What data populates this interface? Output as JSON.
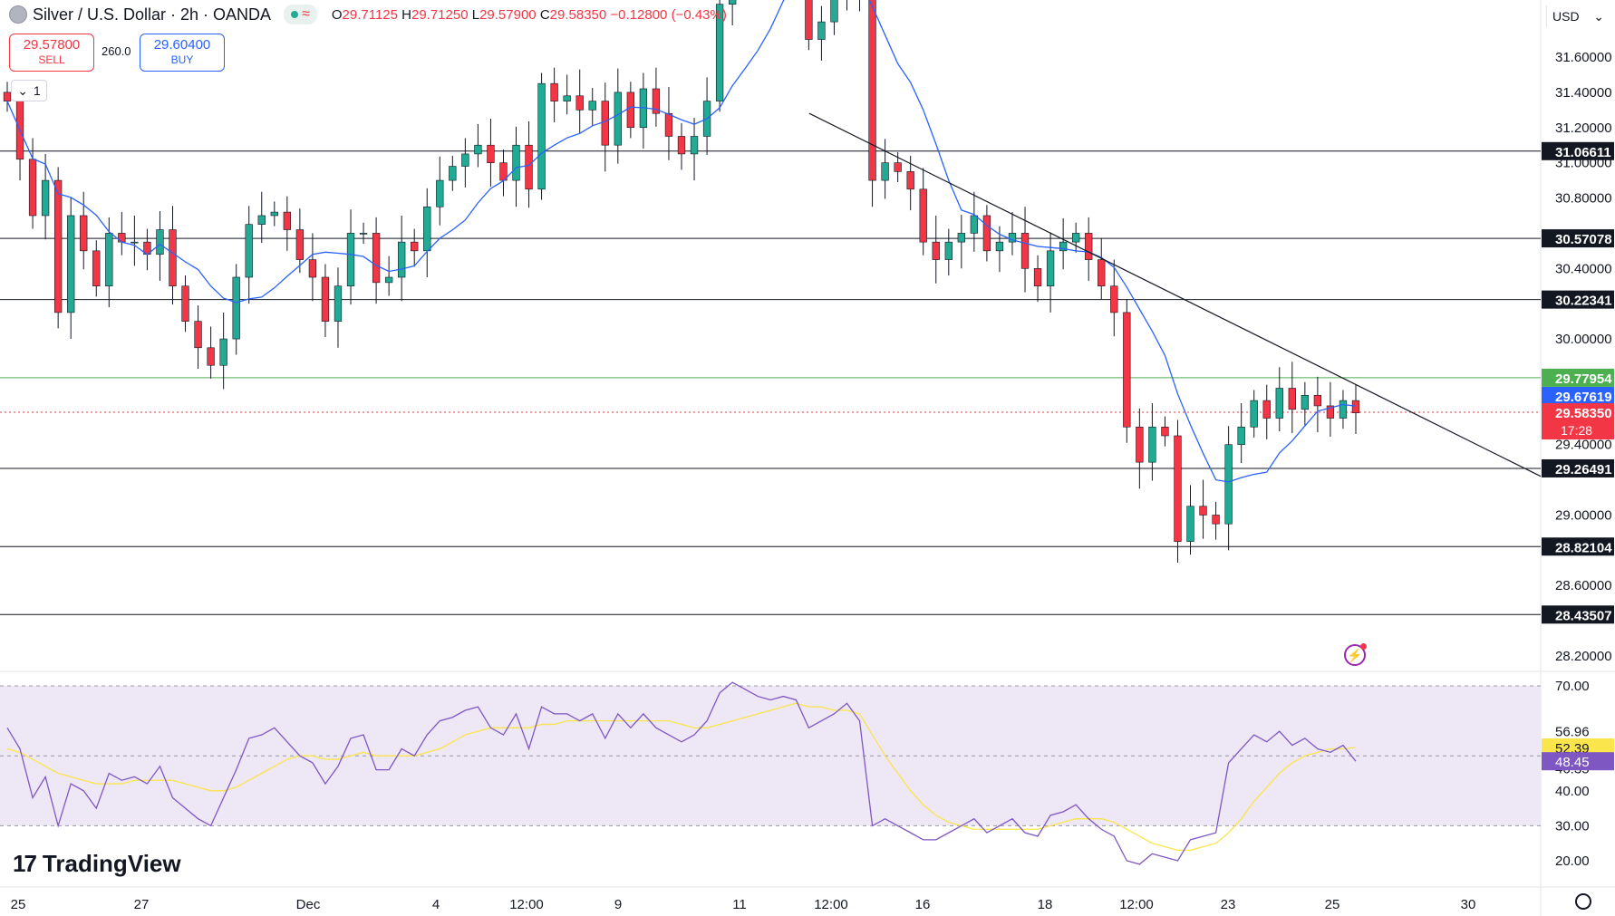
{
  "header": {
    "title": "Silver / U.S. Dollar · 2h · OANDA",
    "o_label": "O",
    "o_value": "29.71125",
    "h_label": "H",
    "h_value": "29.71250",
    "l_label": "L",
    "l_value": "29.57900",
    "c_label": "C",
    "c_value": "29.58350",
    "change": "−0.12800 (−0.43%)"
  },
  "trade": {
    "sell_price": "29.57800",
    "sell_label": "SELL",
    "spread": "260.0",
    "buy_price": "29.60400",
    "buy_label": "BUY"
  },
  "indicator_toggle": "1",
  "currency": "USD",
  "branding": "TradingView",
  "icons": [
    "coin-icon",
    "market-open-dot-icon",
    "wave-icon",
    "chevron-down-icon",
    "lightning-icon",
    "settings-icon"
  ],
  "colors": {
    "up": "#22ab94",
    "down": "#f23645",
    "ma": "#2962ff",
    "rsi": "#7e57c2",
    "rsi_ma": "#fbe54c",
    "rsi_band": "#ede7f6",
    "level": "#131722",
    "green_level": "#4caf50"
  },
  "chart_data": [
    {
      "type": "candlestick",
      "title": "Silver / U.S. Dollar · 2h · OANDA",
      "ylim": [
        28.0,
        32.0
      ],
      "y_ticks": [
        "31.60000",
        "31.40000",
        "31.20000",
        "31.00000",
        "30.80000",
        "30.40000",
        "30.00000",
        "29.40000",
        "29.00000",
        "28.60000",
        "28.20000"
      ],
      "x_ticks": [
        "25",
        "27",
        "Dec",
        "4",
        "12:00",
        "9",
        "11",
        "12:00",
        "16",
        "18",
        "12:00",
        "23",
        "25",
        "30"
      ],
      "horizontal_levels": [
        "31.06611",
        "30.57078",
        "30.22341",
        "29.26491",
        "28.82104",
        "28.43507"
      ],
      "green_level": "29.77954",
      "ma_label": "29.67619",
      "last_price": "29.58350",
      "countdown": "17:28",
      "trendline": {
        "from": 31.28,
        "to": 29.22
      },
      "closes": [
        31.35,
        31.02,
        30.7,
        30.9,
        30.15,
        30.7,
        30.5,
        30.3,
        30.6,
        30.55,
        30.55,
        30.48,
        30.62,
        30.3,
        30.1,
        29.95,
        29.85,
        30.0,
        30.35,
        30.65,
        30.7,
        30.72,
        30.62,
        30.45,
        30.35,
        30.1,
        30.3,
        30.6,
        30.6,
        30.32,
        30.35,
        30.55,
        30.5,
        30.75,
        30.9,
        30.98,
        31.05,
        31.1,
        31.0,
        30.9,
        31.1,
        30.85,
        31.45,
        31.35,
        31.38,
        31.3,
        31.35,
        31.1,
        31.4,
        31.2,
        31.42,
        31.28,
        31.15,
        31.05,
        31.15,
        31.35,
        31.9,
        32.2,
        32.2,
        32.1,
        32.15,
        32.3,
        32.25,
        31.7,
        31.8,
        32.0,
        32.2,
        31.95,
        30.9,
        31.0,
        30.95,
        30.85,
        30.55,
        30.45,
        30.55,
        30.6,
        30.7,
        30.5,
        30.55,
        30.6,
        30.4,
        30.3,
        30.5,
        30.55,
        30.6,
        30.45,
        30.3,
        30.15,
        29.5,
        29.3,
        29.5,
        29.45,
        28.85,
        29.05,
        29.0,
        28.95,
        29.4,
        29.5,
        29.65,
        29.55,
        29.72,
        29.6,
        29.68,
        29.62,
        29.55,
        29.65,
        29.58
      ]
    },
    {
      "type": "line",
      "title": "RSI",
      "ylim": [
        15,
        75
      ],
      "y_ticks": [
        "70.00",
        "56.96",
        "46.35",
        "40.00",
        "30.00",
        "20.00"
      ],
      "bands": [
        30,
        50,
        70
      ],
      "rsi_value": "48.45",
      "rsi_ma_value": "52.39",
      "rsi": [
        58,
        52,
        38,
        44,
        30,
        42,
        40,
        35,
        45,
        43,
        44,
        42,
        47,
        38,
        35,
        32,
        30,
        38,
        46,
        55,
        56,
        58,
        54,
        50,
        48,
        42,
        47,
        55,
        56,
        46,
        46,
        52,
        50,
        56,
        60,
        61,
        63,
        64,
        58,
        56,
        62,
        52,
        64,
        62,
        62,
        60,
        62,
        55,
        62,
        58,
        62,
        58,
        56,
        54,
        56,
        60,
        68,
        71,
        69,
        67,
        66,
        67,
        66,
        58,
        60,
        62,
        65,
        60,
        30,
        32,
        30,
        28,
        26,
        26,
        28,
        30,
        32,
        28,
        30,
        32,
        28,
        27,
        33,
        34,
        36,
        32,
        29,
        27,
        20,
        19,
        22,
        21,
        20,
        26,
        27,
        28,
        48,
        52,
        56,
        54,
        57,
        53,
        55,
        52,
        51,
        53,
        48.45
      ],
      "rsi_ma": [
        52,
        51,
        49,
        47,
        45,
        44,
        43,
        42,
        42,
        42,
        43,
        43,
        43,
        43,
        42,
        41,
        40,
        40,
        41,
        43,
        45,
        47,
        49,
        50,
        50,
        49,
        49,
        50,
        51,
        50,
        50,
        50,
        50,
        51,
        52,
        54,
        56,
        57,
        58,
        58,
        58,
        58,
        59,
        59,
        60,
        60,
        60,
        60,
        60,
        60,
        60,
        60,
        60,
        59,
        58,
        58,
        59,
        60,
        61,
        62,
        63,
        64,
        65,
        64,
        64,
        63,
        63,
        62,
        56,
        50,
        45,
        40,
        36,
        33,
        31,
        30,
        29,
        29,
        29,
        29,
        29,
        29,
        30,
        31,
        32,
        32,
        32,
        31,
        29,
        27,
        25,
        24,
        23,
        23,
        24,
        25,
        28,
        32,
        37,
        41,
        45,
        48,
        50,
        51,
        52,
        52,
        52.39
      ]
    }
  ]
}
